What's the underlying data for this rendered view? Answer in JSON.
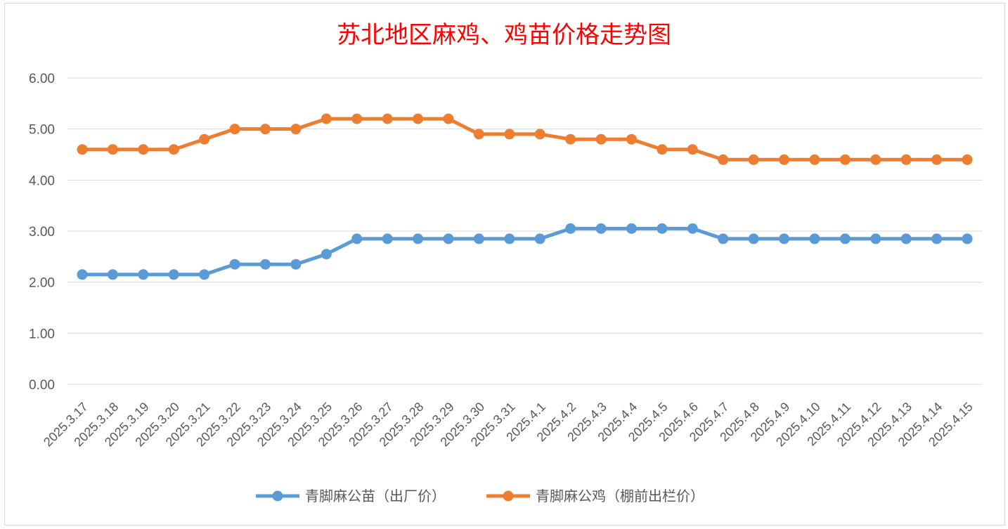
{
  "chart_data": {
    "type": "line",
    "title": "苏北地区麻鸡、鸡苗价格走势图",
    "xlabel": "",
    "ylabel": "",
    "ylim": [
      0,
      6
    ],
    "yticks": [
      "0.00",
      "1.00",
      "2.00",
      "3.00",
      "4.00",
      "5.00",
      "6.00"
    ],
    "grid": true,
    "legend": "bottom",
    "categories": [
      "2025.3.17",
      "2025.3.18",
      "2025.3.19",
      "2025.3.20",
      "2025.3.21",
      "2025.3.22",
      "2025.3.23",
      "2025.3.24",
      "2025.3.25",
      "2025.3.26",
      "2025.3.27",
      "2025.3.28",
      "2025.3.29",
      "2025.3.30",
      "2025.3.31",
      "2025.4.1",
      "2025.4.2",
      "2025.4.3",
      "2025.4.4",
      "2025.4.5",
      "2025.4.6",
      "2025.4.7",
      "2025.4.8",
      "2025.4.9",
      "2025.4.10",
      "2025.4.11",
      "2025.4.12",
      "2025.4.13",
      "2025.4.14",
      "2025.4.15"
    ],
    "series": [
      {
        "name": "青脚麻公苗（出厂价）",
        "color": "#5b9bd5",
        "values": [
          2.15,
          2.15,
          2.15,
          2.15,
          2.15,
          2.35,
          2.35,
          2.35,
          2.55,
          2.85,
          2.85,
          2.85,
          2.85,
          2.85,
          2.85,
          2.85,
          3.05,
          3.05,
          3.05,
          3.05,
          3.05,
          2.85,
          2.85,
          2.85,
          2.85,
          2.85,
          2.85,
          2.85,
          2.85,
          2.85
        ]
      },
      {
        "name": "青脚麻公鸡（棚前出栏价）",
        "color": "#ed7d31",
        "values": [
          4.6,
          4.6,
          4.6,
          4.6,
          4.8,
          5.0,
          5.0,
          5.0,
          5.2,
          5.2,
          5.2,
          5.2,
          5.2,
          4.9,
          4.9,
          4.9,
          4.8,
          4.8,
          4.8,
          4.6,
          4.6,
          4.4,
          4.4,
          4.4,
          4.4,
          4.4,
          4.4,
          4.4,
          4.4,
          4.4
        ]
      }
    ],
    "title_color": "#ff0000"
  }
}
